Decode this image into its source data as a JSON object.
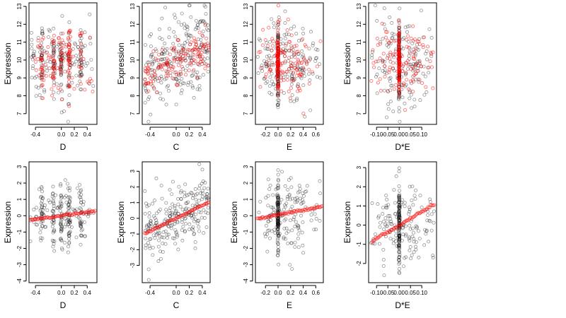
{
  "figure": {
    "colors": {
      "observed": "#000000",
      "fitted": "#ff0000"
    },
    "grid": false
  },
  "chart_data": [
    {
      "type": "scatter",
      "panel": "top-D",
      "xlabel": "D",
      "ylabel": "Expression",
      "xlim": [
        -0.5,
        0.55
      ],
      "ylim": [
        6.4,
        13.2
      ],
      "xticks": [
        -0.4,
        0.0,
        0.2,
        0.4
      ],
      "xtick_labels": [
        "-0.4",
        "0.0",
        "0.2",
        "0.4"
      ],
      "yticks": [
        7,
        8,
        9,
        10,
        11,
        12,
        13
      ],
      "ytick_labels": [
        "7",
        "8",
        "9",
        "10",
        "11",
        "12",
        "13"
      ],
      "series": [
        {
          "role": "observed",
          "color": "#000000",
          "pattern": "scatter",
          "count": 240,
          "x_range": [
            -0.48,
            0.5
          ],
          "x_clusters": [
            -0.3,
            -0.12,
            0.0,
            0.12,
            0.3
          ],
          "y_mean": 9.9,
          "y_sd": 1.1
        },
        {
          "role": "fitted",
          "color": "#ff0000",
          "pattern": "scatter",
          "count": 160,
          "x_range": [
            -0.48,
            0.5
          ],
          "x_clusters": [
            -0.3,
            -0.12,
            0.0,
            0.12,
            0.3
          ],
          "y_mean": 9.9,
          "y_sd": 0.9
        }
      ]
    },
    {
      "type": "scatter",
      "panel": "top-C",
      "xlabel": "C",
      "ylabel": "Expression",
      "xlim": [
        -0.52,
        0.52
      ],
      "ylim": [
        6.4,
        13.2
      ],
      "xticks": [
        -0.4,
        0.0,
        0.2,
        0.4
      ],
      "xtick_labels": [
        "-0.4",
        "0.0",
        "0.2",
        "0.4"
      ],
      "yticks": [
        7,
        8,
        9,
        10,
        11,
        12,
        13
      ],
      "ytick_labels": [
        "7",
        "8",
        "9",
        "10",
        "11",
        "12",
        "13"
      ],
      "series": [
        {
          "role": "observed",
          "color": "#000000",
          "pattern": "trend",
          "count": 240,
          "x_range": [
            -0.48,
            0.5
          ],
          "slope": 1.9,
          "intercept": 9.9,
          "y_sd": 1.15
        },
        {
          "role": "fitted",
          "color": "#ff0000",
          "pattern": "trend",
          "count": 140,
          "x_range": [
            -0.48,
            0.5
          ],
          "slope": 1.9,
          "intercept": 9.9,
          "y_sd": 0.55
        }
      ]
    },
    {
      "type": "scatter",
      "panel": "top-E",
      "xlabel": "E",
      "ylabel": "Expression",
      "xlim": [
        -0.36,
        0.72
      ],
      "ylim": [
        6.4,
        13.2
      ],
      "xticks": [
        -0.2,
        0.0,
        0.2,
        0.4,
        0.6
      ],
      "xtick_labels": [
        "-0.2",
        "0.0",
        "0.2",
        "0.4",
        "0.6"
      ],
      "yticks": [
        7,
        8,
        9,
        10,
        11,
        12,
        13
      ],
      "ytick_labels": [
        "7",
        "8",
        "9",
        "10",
        "11",
        "12",
        "13"
      ],
      "series": [
        {
          "role": "observed",
          "color": "#000000",
          "pattern": "spike",
          "count": 260,
          "x_range": [
            -0.33,
            0.68
          ],
          "x_spike": 0.0,
          "spike_share": 0.4,
          "y_mean": 9.9,
          "y_sd": 1.15
        },
        {
          "role": "fitted",
          "color": "#ff0000",
          "pattern": "spike",
          "count": 200,
          "x_range": [
            -0.33,
            0.68
          ],
          "x_spike": 0.0,
          "spike_share": 0.45,
          "y_mean": 9.9,
          "y_sd": 0.9
        }
      ]
    },
    {
      "type": "scatter",
      "panel": "top-DE",
      "xlabel": "D*E",
      "ylabel": "Expression",
      "xlim": [
        -0.135,
        0.165
      ],
      "ylim": [
        6.4,
        13.2
      ],
      "xticks": [
        -0.1,
        -0.05,
        0.0,
        0.05,
        0.1
      ],
      "xtick_labels": [
        "-0.10",
        "-0.05",
        "0.00",
        "0.05",
        "0.10"
      ],
      "yticks": [
        7,
        8,
        9,
        10,
        11,
        12,
        13
      ],
      "ytick_labels": [
        "7",
        "8",
        "9",
        "10",
        "11",
        "12",
        "13"
      ],
      "series": [
        {
          "role": "observed",
          "color": "#000000",
          "pattern": "spike",
          "count": 260,
          "x_range": [
            -0.125,
            0.155
          ],
          "x_spike": 0.0,
          "spike_share": 0.45,
          "y_mean": 9.9,
          "y_sd": 1.2
        },
        {
          "role": "fitted",
          "color": "#ff0000",
          "pattern": "spike",
          "count": 200,
          "x_range": [
            -0.125,
            0.155
          ],
          "x_spike": 0.0,
          "spike_share": 0.45,
          "y_mean": 9.9,
          "y_sd": 0.9
        }
      ]
    },
    {
      "type": "scatter",
      "panel": "bottom-D",
      "xlabel": "D",
      "ylabel": "Expression",
      "xlim": [
        -0.5,
        0.55
      ],
      "ylim": [
        -4.1,
        3.3
      ],
      "xticks": [
        -0.4,
        0.0,
        0.2,
        0.4
      ],
      "xtick_labels": [
        "-0.4",
        "0.0",
        "0.2",
        "0.4"
      ],
      "yticks": [
        -4,
        -3,
        -2,
        -1,
        0,
        1,
        2,
        3
      ],
      "ytick_labels": [
        "-4",
        "-3",
        "-2",
        "-1",
        "0",
        "1",
        "2",
        "3"
      ],
      "series": [
        {
          "role": "observed",
          "color": "#000000",
          "pattern": "scatter",
          "count": 240,
          "x_range": [
            -0.48,
            0.5
          ],
          "x_clusters": [
            -0.3,
            -0.12,
            0.0,
            0.12,
            0.3
          ],
          "y_mean": 0.0,
          "y_sd": 1.0
        },
        {
          "role": "fitted",
          "color": "#ff0000",
          "pattern": "line",
          "count": 70,
          "x_range": [
            -0.48,
            0.52
          ],
          "slope": 0.55,
          "intercept": 0.0
        }
      ]
    },
    {
      "type": "scatter",
      "panel": "bottom-C",
      "xlabel": "C",
      "ylabel": "Expression",
      "xlim": [
        -0.52,
        0.52
      ],
      "ylim": [
        -4.1,
        3.6
      ],
      "xticks": [
        -0.4,
        0.0,
        0.2,
        0.4
      ],
      "xtick_labels": [
        "-0.4",
        "0.0",
        "0.2",
        "0.4"
      ],
      "yticks": [
        -3,
        -2,
        -1,
        0,
        1,
        2,
        3
      ],
      "ytick_labels": [
        "-3",
        "-2",
        "-1",
        "0",
        "1",
        "2",
        "3"
      ],
      "series": [
        {
          "role": "observed",
          "color": "#000000",
          "pattern": "trend",
          "count": 240,
          "x_range": [
            -0.48,
            0.5
          ],
          "slope": 2.0,
          "intercept": 0.0,
          "y_sd": 1.0
        },
        {
          "role": "fitted",
          "color": "#ff0000",
          "pattern": "line",
          "count": 70,
          "x_range": [
            -0.48,
            0.5
          ],
          "slope": 2.05,
          "intercept": 0.0
        }
      ]
    },
    {
      "type": "scatter",
      "panel": "bottom-E",
      "xlabel": "E",
      "ylabel": "Expression",
      "xlim": [
        -0.36,
        0.72
      ],
      "ylim": [
        -4.1,
        3.3
      ],
      "xticks": [
        -0.2,
        0.0,
        0.2,
        0.4,
        0.6
      ],
      "xtick_labels": [
        "-0.2",
        "0.0",
        "0.2",
        "0.4",
        "0.6"
      ],
      "yticks": [
        -4,
        -3,
        -2,
        -1,
        0,
        1,
        2,
        3
      ],
      "ytick_labels": [
        "-4",
        "-3",
        "-2",
        "-1",
        "0",
        "1",
        "2",
        "3"
      ],
      "series": [
        {
          "role": "observed",
          "color": "#000000",
          "pattern": "spike",
          "count": 260,
          "x_range": [
            -0.33,
            0.68
          ],
          "x_spike": 0.0,
          "spike_share": 0.45,
          "y_mean": 0.0,
          "y_sd": 1.05
        },
        {
          "role": "fitted",
          "color": "#ff0000",
          "pattern": "line",
          "count": 70,
          "x_range": [
            -0.33,
            0.7
          ],
          "slope": 0.75,
          "intercept": 0.05
        }
      ]
    },
    {
      "type": "scatter",
      "panel": "bottom-DE",
      "xlabel": "D*E",
      "ylabel": "Expression",
      "xlim": [
        -0.135,
        0.165
      ],
      "ylim": [
        -3.0,
        3.3
      ],
      "xticks": [
        -0.1,
        -0.05,
        0.0,
        0.05,
        0.1
      ],
      "xtick_labels": [
        "-0.10",
        "-0.05",
        "0.00",
        "0.05",
        "0.10"
      ],
      "yticks": [
        -2,
        -1,
        0,
        1,
        2,
        3
      ],
      "ytick_labels": [
        "-2",
        "-1",
        "0",
        "1",
        "2",
        "3"
      ],
      "series": [
        {
          "role": "observed",
          "color": "#000000",
          "pattern": "spike",
          "count": 260,
          "x_range": [
            -0.125,
            0.155
          ],
          "x_spike": 0.0,
          "spike_share": 0.45,
          "y_mean": 0.0,
          "y_sd": 1.0
        },
        {
          "role": "fitted",
          "color": "#ff0000",
          "pattern": "line",
          "count": 70,
          "x_range": [
            -0.12,
            0.155
          ],
          "slope": 7.0,
          "intercept": 0.0
        }
      ]
    }
  ]
}
